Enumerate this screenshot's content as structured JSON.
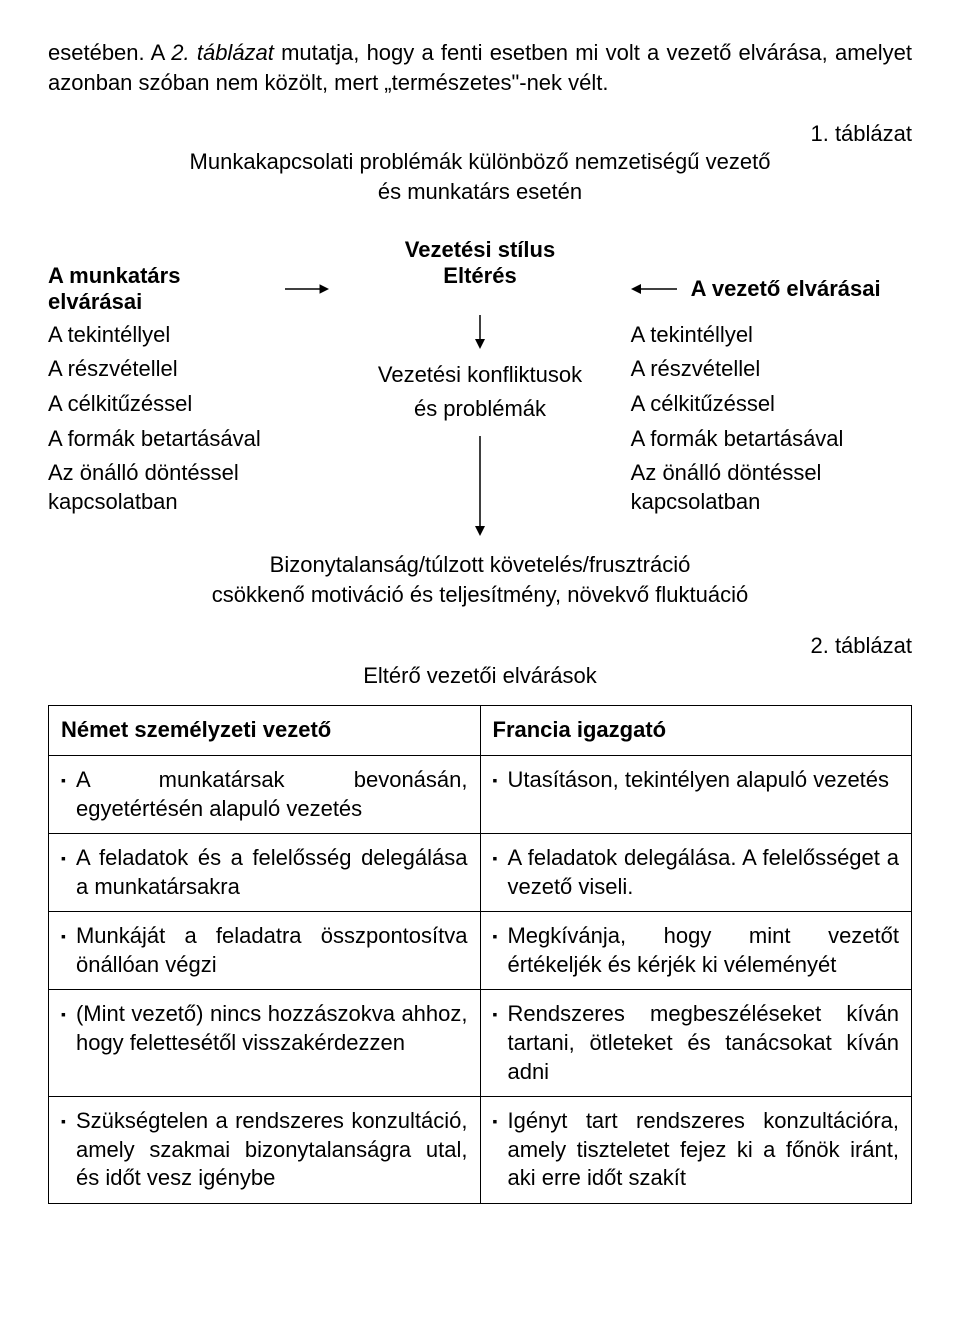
{
  "intro": {
    "pre_italic": "esetében. A ",
    "italic": "2. táblázat",
    "post_italic": " mutatja, hogy a fenti esetben mi volt a vezető elvárása, amelyet azonban szóban nem közölt, mert „természetes\"-nek vélt."
  },
  "table1": {
    "label": "1. táblázat",
    "title_line1": "Munkakapcsolati problémák különböző nemzetiségű vezető",
    "title_line2": "és munkatárs esetén"
  },
  "diagram": {
    "center_heading": "Vezetési stílus",
    "left_header": "A munkatárs elvárásai",
    "center_row1": "Eltérés",
    "right_header": "A vezető elvárásai",
    "left_items": [
      "A tekintéllyel",
      "A részvétellel",
      "A célkitűzéssel",
      "A formák betartásával",
      "Az önálló döntéssel kapcsolatban"
    ],
    "right_items": [
      "A tekintéllyel",
      "A részvétellel",
      "A célkitűzéssel",
      "A formák betartásával",
      "Az önálló döntéssel kapcsolatban"
    ],
    "center_middle_line1": "Vezetési konfliktusok",
    "center_middle_line2": "és problémák",
    "summary_line1": "Bizonytalanság/túlzott követelés/frusztráció",
    "summary_line2": "csökkenő motiváció és teljesítmény, növekvő fluktuáció",
    "arrow_color": "#000000",
    "arrow_stroke_width": 1.5
  },
  "table2": {
    "label": "2. táblázat",
    "title": "Eltérő vezetői elvárások",
    "col_left": "Német személyzeti vezető",
    "col_right": "Francia igazgató",
    "rows": [
      {
        "left": "A munkatársak bevonásán, egyetértésén alapuló vezetés",
        "right": "Utasításon, tekintélyen alapuló vezetés"
      },
      {
        "left": "A feladatok és a felelősség delegálása a munkatársakra",
        "right": "A feladatok delegálása. A felelősséget a vezető viseli."
      },
      {
        "left": "Munkáját a feladatra összpontosítva önállóan végzi",
        "right": "Megkívánja, hogy mint vezetőt értékeljék és kérjék ki véleményét"
      },
      {
        "left": "(Mint vezető) nincs hozzászokva ahhoz, hogy felettesétől visszakérdezzen",
        "right": "Rendszeres megbeszéléseket kíván tartani, ötleteket és tanácsokat kíván adni"
      },
      {
        "left": "Szükségtelen a rendszeres konzultáció, amely szakmai bizonytalanságra utal, és időt vesz igénybe",
        "right": "Igényt tart rendszeres konzultációra, amely tiszteletet fejez ki a főnök iránt, aki erre időt szakít"
      }
    ],
    "bullet_glyph": "▪"
  }
}
